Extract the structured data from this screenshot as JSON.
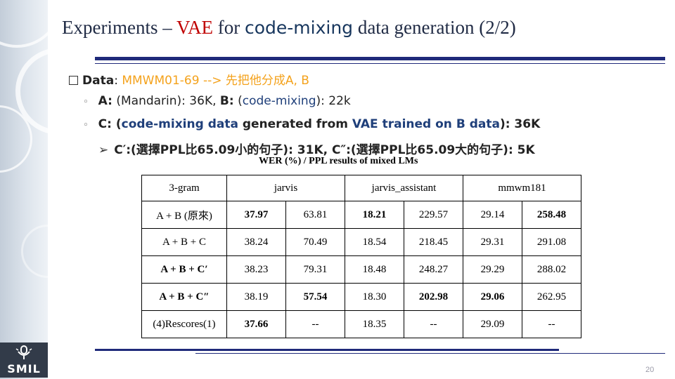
{
  "slide": {
    "title_pre": "Experiments – ",
    "title_vae": "VAE",
    "title_for": " for ",
    "title_codemix": "code-mixing",
    "title_post": " data generation (2/2)",
    "page_number": "20",
    "logo_text": "SMIL"
  },
  "bullets": {
    "b1_label": "Data",
    "b1_colon": ": ",
    "b1_rest": "MMWM01-69 --> 先把他分成A, B",
    "b2_a": "A:",
    "b2_a_rest": " (Mandarin): 36K, ",
    "b2_b": "B:",
    "b2_b_rest1": " (",
    "b2_b_codemix": "code-mixing",
    "b2_b_rest2": "): 22k",
    "b3_c": "C:",
    "b3_rest1": " (",
    "b3_codemix": "code-mixing data",
    "b3_rest2": " generated from ",
    "b3_vae": "VAE",
    "b3_rest3": " trained on B data",
    "b3_rest4": "): 36K",
    "b4_c1": "C′",
    "b4_mid1": ":(選擇PPL比65.09小的句子): 31K, ",
    "b4_c2": "C″",
    "b4_mid2": ":(選擇PPL比65.09大的句子): 5K"
  },
  "table": {
    "caption": "WER (%) / PPL results of mixed LMs",
    "headers": [
      "3-gram",
      "jarvis",
      "jarvis_assistant",
      "mmwm181"
    ],
    "rows": [
      {
        "label": "A + B (原來)",
        "cells": [
          "37.97",
          "63.81",
          "18.21",
          "229.57",
          "29.14",
          "258.48"
        ],
        "bold": [
          true,
          false,
          true,
          false,
          false,
          true
        ]
      },
      {
        "label": "A + B + C",
        "cells": [
          "38.24",
          "70.49",
          "18.54",
          "218.45",
          "29.31",
          "291.08"
        ],
        "bold": [
          false,
          false,
          false,
          false,
          false,
          false
        ]
      },
      {
        "label": "A + B + C′",
        "cells": [
          "38.23",
          "79.31",
          "18.48",
          "248.27",
          "29.29",
          "288.02"
        ],
        "bold": [
          false,
          false,
          false,
          false,
          false,
          false
        ]
      },
      {
        "label": "A + B + C″",
        "cells": [
          "38.19",
          "57.54",
          "18.30",
          "202.98",
          "29.06",
          "262.95"
        ],
        "bold": [
          false,
          true,
          false,
          true,
          true,
          false
        ]
      },
      {
        "label": "(4)Rescores(1)",
        "cells": [
          "37.66",
          "--",
          "18.35",
          "--",
          "29.09",
          "--"
        ],
        "bold": [
          true,
          false,
          false,
          false,
          false,
          false
        ]
      }
    ]
  }
}
